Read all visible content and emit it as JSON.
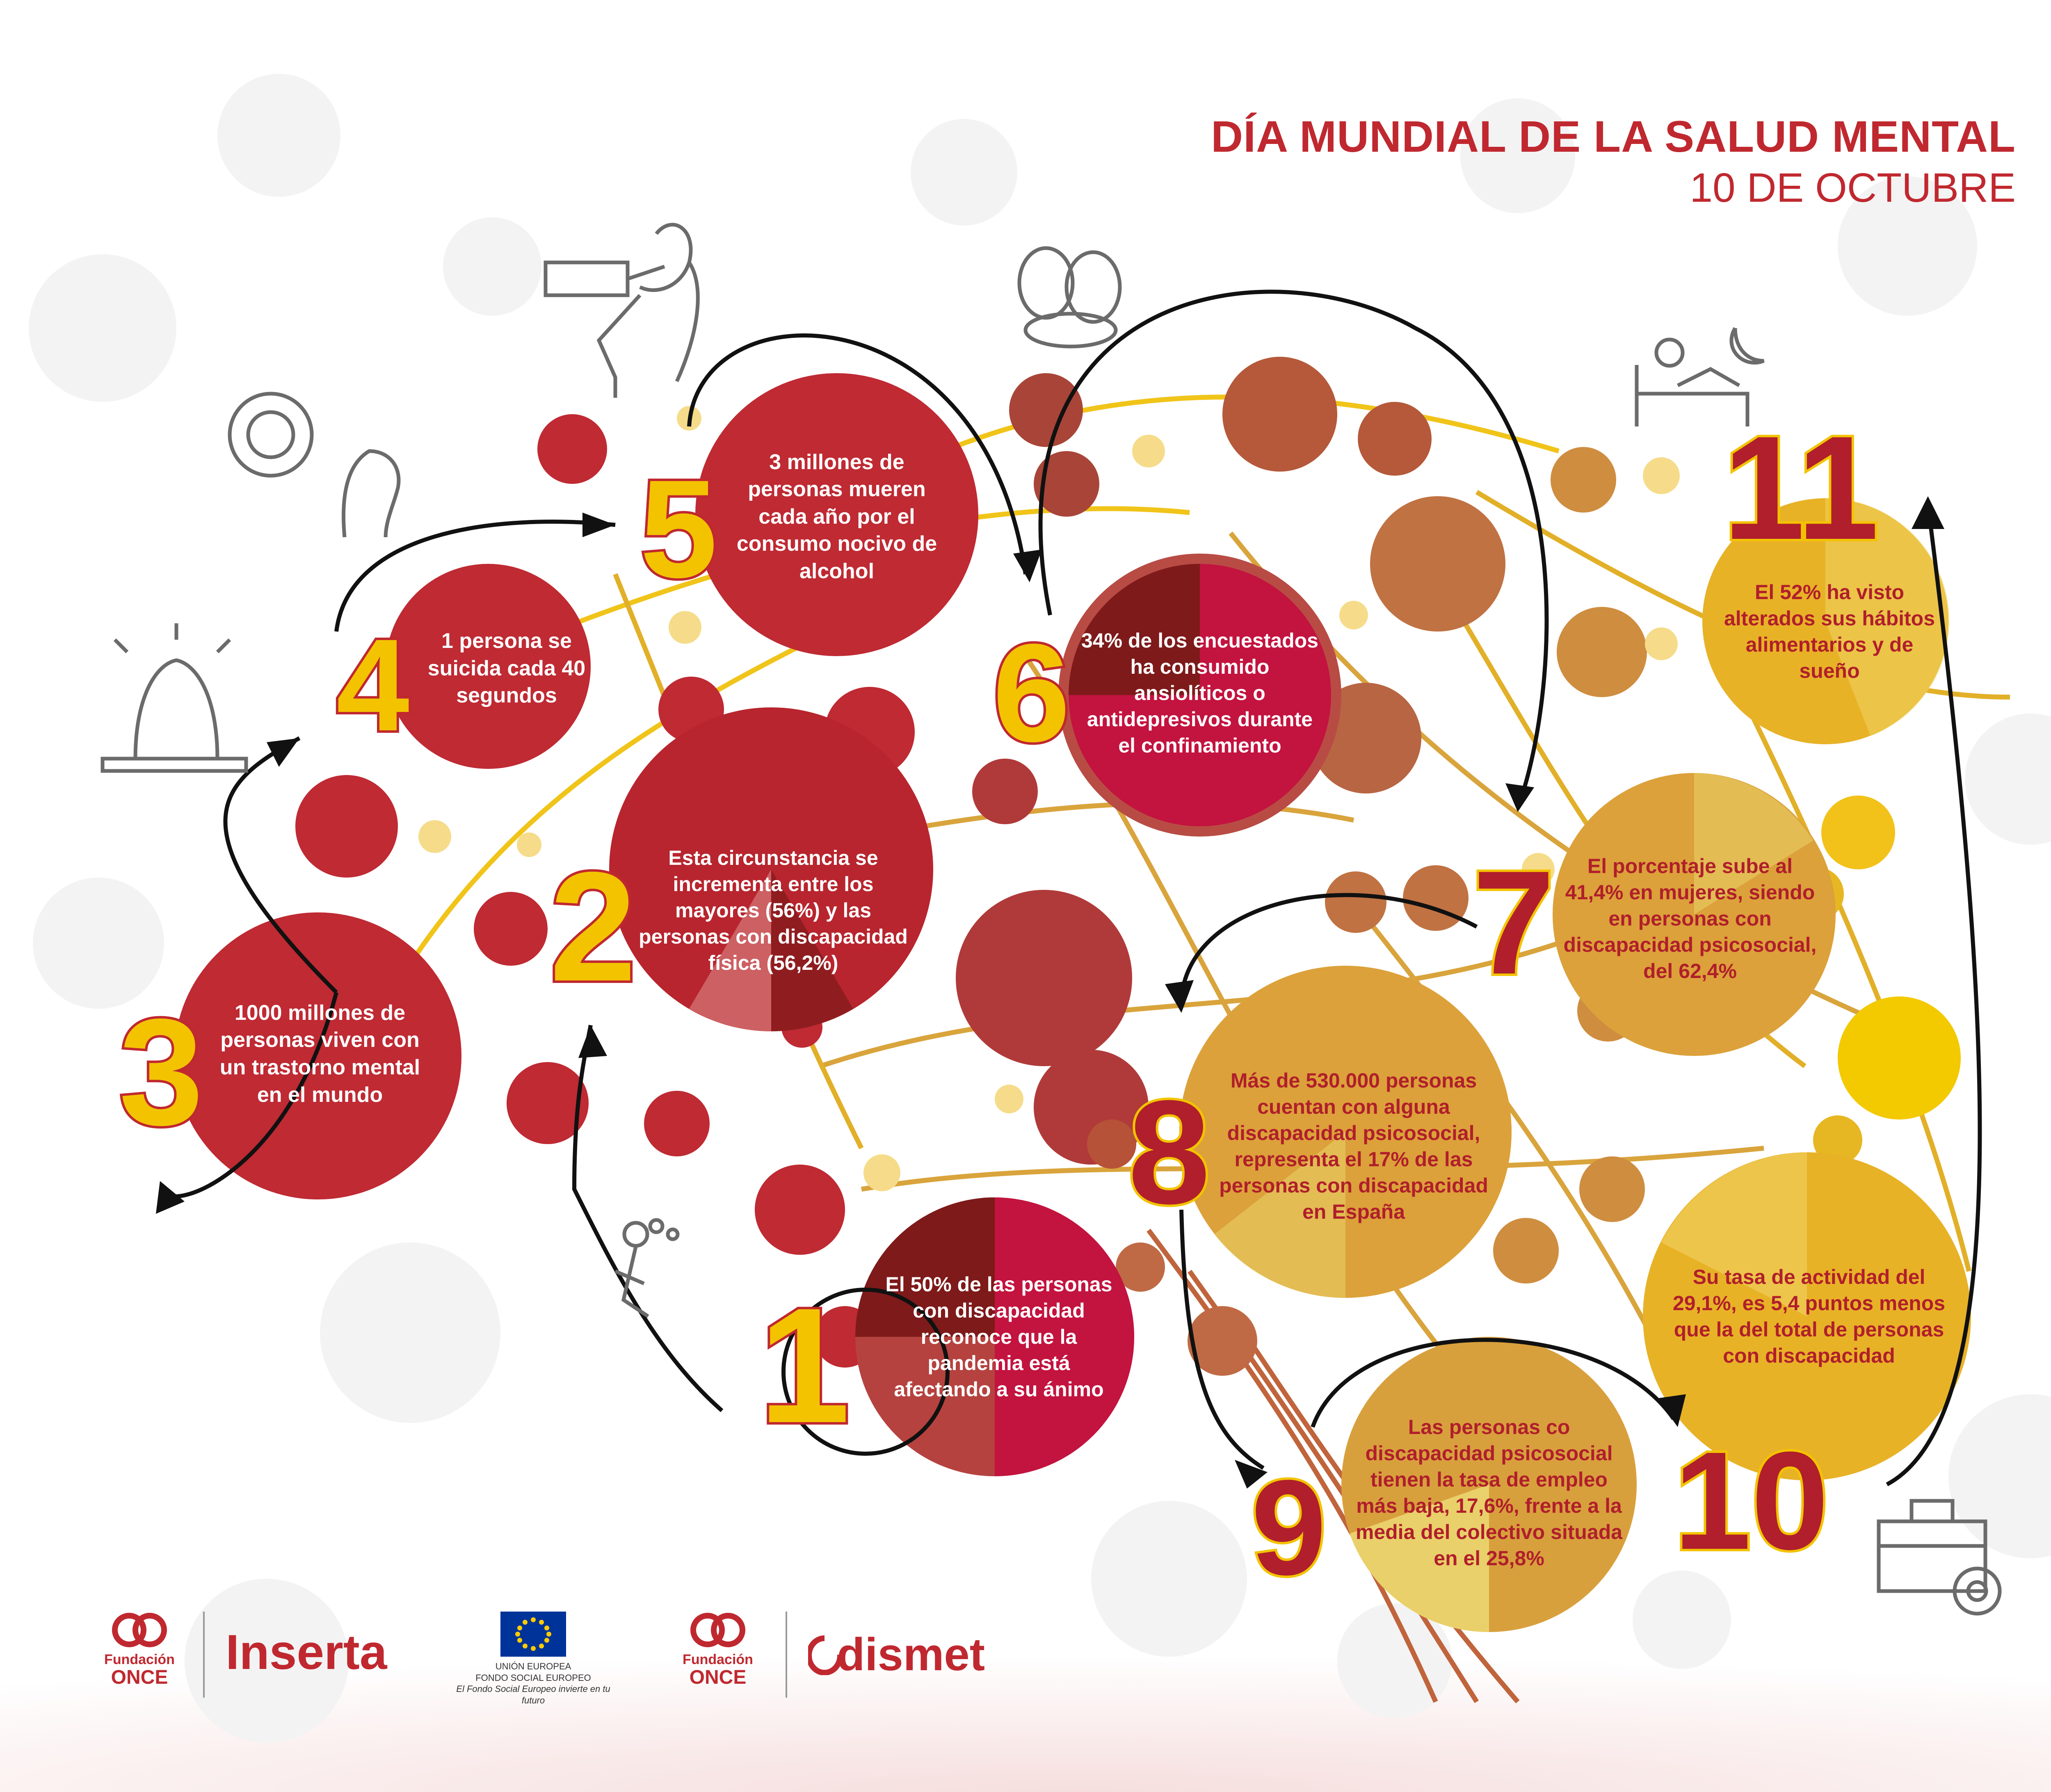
{
  "title": {
    "main": "DÍA MUNDIAL DE LA SALUD MENTAL",
    "date": "10 DE OCTUBRE"
  },
  "steps": [
    {
      "number": "1",
      "text": "El 50% de las personas con discapacidad reconoce que la pandemia está afectando a su ánimo",
      "percent": 50
    },
    {
      "number": "2",
      "text": "Esta circunstancia se incrementa entre los mayores (56%) y las personas con discapacidad física (56,2%)",
      "percent": 56
    },
    {
      "number": "3",
      "text": "1000 millones de personas viven con un trastorno mental en el mundo"
    },
    {
      "number": "4",
      "text": "1 persona se suicida cada 40 segundos"
    },
    {
      "number": "5",
      "text": "3 millones de personas mueren cada año por el consumo nocivo de alcohol"
    },
    {
      "number": "6",
      "text": "34% de los encuestados ha consumido ansiolíticos o antidepresivos durante el confinamiento",
      "percent": 34
    },
    {
      "number": "7",
      "text": "El porcentaje sube al 41,4% en mujeres, siendo en personas con discapacidad psicosocial, del 62,4%",
      "percent": 41.4
    },
    {
      "number": "8",
      "text": "Más de 530.000 personas cuentan con alguna discapacidad psicosocial, representa el 17% de las personas con discapacidad en España",
      "percent": 17
    },
    {
      "number": "9",
      "text": "Las personas co discapacidad psicosocial tienen la tasa de empleo más baja, 17,6%, frente a la media del colectivo situada en el 25,8%",
      "percent": 17.6
    },
    {
      "number": "10",
      "text": "Su tasa de actividad del 29,1%, es 5,4 puntos menos que la del total de personas con discapacidad",
      "percent": 29.1
    },
    {
      "number": "11",
      "text": "El 52% ha visto alterados sus hábitos alimentarios y de sueño",
      "percent": 52
    }
  ],
  "logos": {
    "once_line1": "Fundación",
    "once_line2": "ONCE",
    "inserta": "Inserta",
    "eu_line1": "UNIÓN EUROPEA",
    "eu_line2": "FONDO SOCIAL EUROPEO",
    "eu_line3": "El Fondo Social Europeo invierte en tu futuro",
    "odismet": "dismet"
  },
  "colors": {
    "red": "#c0282f",
    "crimson": "#c3133f",
    "yellow": "#f3c300",
    "orange": "#d49a3a",
    "brown": "#b55a44"
  },
  "icons": [
    "alcohol-icon",
    "pills-icon",
    "insomnia-icon",
    "mental-health-icon",
    "distress-icon",
    "suicide-icon",
    "depression-icon",
    "briefcase-gear-icon"
  ]
}
